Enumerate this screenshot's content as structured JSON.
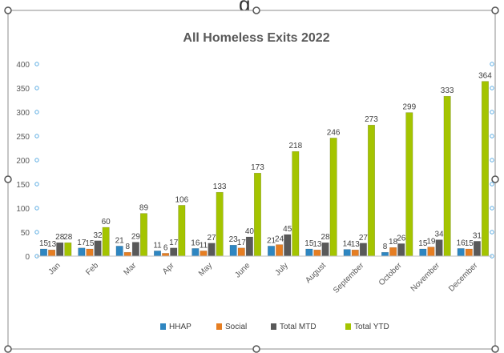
{
  "page_header": {
    "title_fragment": "g"
  },
  "chart_data": {
    "type": "bar",
    "title": "All Homeless Exits 2022",
    "categories": [
      "Jan",
      "Feb",
      "Mar",
      "Apr",
      "May",
      "June",
      "July",
      "August",
      "September",
      "October",
      "November",
      "December"
    ],
    "series": [
      {
        "name": "HHAP",
        "color": "#2E86C1",
        "values": [
          15,
          17,
          21,
          11,
          16,
          23,
          21,
          15,
          14,
          8,
          15,
          16
        ]
      },
      {
        "name": "Social",
        "color": "#E67E22",
        "values": [
          13,
          15,
          8,
          6,
          11,
          17,
          24,
          13,
          13,
          18,
          19,
          15
        ]
      },
      {
        "name": "Total MTD",
        "color": "#595959",
        "values": [
          28,
          32,
          29,
          17,
          27,
          40,
          45,
          28,
          27,
          26,
          34,
          31
        ]
      },
      {
        "name": "Total YTD",
        "color": "#A4C400",
        "values": [
          28,
          60,
          89,
          106,
          133,
          173,
          218,
          246,
          273,
          299,
          333,
          364
        ]
      }
    ],
    "ylim": [
      0,
      400
    ],
    "yticks": [
      0,
      50,
      100,
      150,
      200,
      250,
      300,
      350,
      400
    ],
    "grid": false,
    "legend_position": "bottom"
  }
}
